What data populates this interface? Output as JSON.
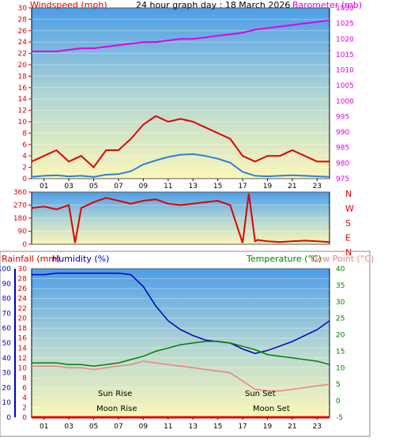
{
  "chart_data": [
    {
      "type": "line",
      "title": "24 hour graph day : 18 March 2026",
      "ylabel": "Windspeed (mph)",
      "ylabel_right": "Barometer (mb)",
      "xticks": [
        "01",
        "03",
        "05",
        "07",
        "09",
        "11",
        "13",
        "15",
        "17",
        "19",
        "21",
        "23"
      ],
      "yticks_left": [
        "0",
        "2",
        "4",
        "6",
        "8",
        "10",
        "12",
        "14",
        "16",
        "18",
        "20",
        "22",
        "24",
        "26",
        "28",
        "30"
      ],
      "yticks_right": [
        "975",
        "980",
        "985",
        "990",
        "995",
        "1000",
        "1005",
        "1010",
        "1015",
        "1020",
        "1025",
        "1030"
      ],
      "ylim": [
        0,
        30
      ],
      "ylim_right": [
        975,
        1030
      ],
      "xlim": [
        0,
        24
      ],
      "series": [
        {
          "id": "wind_avg",
          "color": "#2b7fe0",
          "x": [
            0,
            1,
            2,
            3,
            4,
            5,
            6,
            7,
            8,
            9,
            10,
            11,
            12,
            13,
            14,
            15,
            16,
            17,
            18,
            19,
            20,
            21,
            22,
            23,
            24
          ],
          "values": [
            0.3,
            0.5,
            0.6,
            0.4,
            0.5,
            0.3,
            0.7,
            0.8,
            1.3,
            2.5,
            3.2,
            3.8,
            4.2,
            4.3,
            4.0,
            3.5,
            2.8,
            1.2,
            0.5,
            0.4,
            0.5,
            0.6,
            0.5,
            0.4,
            0.3
          ]
        },
        {
          "id": "wind_gust",
          "color": "#e00000",
          "x": [
            0,
            1,
            2,
            3,
            4,
            5,
            6,
            7,
            8,
            9,
            10,
            11,
            12,
            13,
            14,
            15,
            16,
            17,
            18,
            19,
            20,
            21,
            22,
            23,
            24
          ],
          "values": [
            3,
            4,
            5,
            3,
            4,
            2,
            5,
            5,
            7,
            9.5,
            11,
            10,
            10.5,
            10,
            9,
            8,
            7,
            4,
            3,
            4,
            4,
            5,
            4,
            3,
            3
          ]
        },
        {
          "id": "barometer",
          "color": "#e000e0",
          "axis": "right",
          "x": [
            0,
            1,
            2,
            3,
            4,
            5,
            6,
            7,
            8,
            9,
            10,
            11,
            12,
            13,
            14,
            15,
            16,
            17,
            18,
            19,
            20,
            21,
            22,
            23,
            24
          ],
          "values": [
            1016,
            1016,
            1016,
            1016.5,
            1017,
            1017,
            1017.5,
            1018,
            1018.5,
            1019,
            1019,
            1019.5,
            1020,
            1020,
            1020.5,
            1021,
            1021.5,
            1022,
            1023,
            1023.5,
            1024,
            1024.5,
            1025,
            1025.5,
            1026
          ]
        }
      ]
    },
    {
      "type": "line",
      "ylabel": "",
      "yticks_left": [
        "0",
        "90",
        "180",
        "270",
        "360"
      ],
      "labels_right": [
        "N",
        "W",
        "S",
        "E",
        "N"
      ],
      "ylim": [
        0,
        360
      ],
      "xlim": [
        0,
        24
      ],
      "series": [
        {
          "id": "wind_dir",
          "color": "#e00000",
          "x": [
            0,
            1,
            2,
            3,
            3.5,
            4,
            5,
            6,
            7,
            8,
            9,
            10,
            11,
            12,
            13,
            14,
            15,
            16,
            17,
            17.5,
            18,
            18.2,
            19,
            20,
            21,
            22,
            23,
            24
          ],
          "values": [
            250,
            260,
            240,
            270,
            10,
            250,
            290,
            320,
            300,
            280,
            300,
            310,
            280,
            270,
            280,
            290,
            300,
            270,
            10,
            350,
            20,
            30,
            20,
            15,
            20,
            25,
            20,
            15
          ]
        }
      ]
    },
    {
      "type": "line",
      "ylabel": "Rainfall (mm)",
      "ylabel2": "Humidity (%)",
      "ylabel_right": "Temperature (°C)",
      "ylabel_right2": "Dew Point (°C)",
      "yticks_rain": [
        "0",
        "2",
        "4",
        "6",
        "8",
        "10",
        "12",
        "14",
        "16",
        "18",
        "20",
        "22",
        "24",
        "26",
        "28",
        "30"
      ],
      "yticks_hum": [
        "0",
        "10",
        "20",
        "30",
        "40",
        "50",
        "60",
        "70",
        "80",
        "90",
        "100"
      ],
      "yticks_temp": [
        "-5",
        "0",
        "5",
        "10",
        "15",
        "20",
        "25",
        "30",
        "35",
        "40"
      ],
      "ylim_temp": [
        -5,
        40
      ],
      "ylim_hum": [
        0,
        100
      ],
      "xlim": [
        0,
        24
      ],
      "annotations": {
        "sun_rise": "Sun Rise",
        "sun_set": "Sun Set",
        "moon_rise": "Moon Rise",
        "moon_set": "Moon Set"
      },
      "series": [
        {
          "id": "humidity",
          "color": "#0000c0",
          "axis": "hum",
          "x": [
            0,
            1,
            2,
            3,
            4,
            5,
            6,
            7,
            8,
            9,
            10,
            11,
            12,
            13,
            14,
            15,
            16,
            17,
            18,
            19,
            20,
            21,
            22,
            23,
            24
          ],
          "values": [
            96,
            96,
            97,
            97,
            97,
            97,
            97,
            97,
            96,
            88,
            75,
            65,
            59,
            55,
            52,
            51,
            50,
            46,
            43,
            45,
            48,
            51,
            55,
            59,
            65
          ]
        },
        {
          "id": "temperature",
          "color": "#008000",
          "axis": "temp",
          "x": [
            0,
            1,
            2,
            3,
            4,
            5,
            6,
            7,
            8,
            9,
            10,
            11,
            12,
            13,
            14,
            15,
            16,
            17,
            18,
            19,
            20,
            21,
            22,
            23,
            24
          ],
          "values": [
            11.5,
            11.5,
            11.5,
            11,
            11,
            10.5,
            11,
            11.5,
            12.5,
            13.5,
            15,
            16,
            17,
            17.5,
            18,
            18,
            17.5,
            16.5,
            15.5,
            14,
            13.5,
            13,
            12.5,
            12,
            11
          ]
        },
        {
          "id": "dewpoint",
          "color": "#f08080",
          "axis": "temp",
          "x": [
            0,
            1,
            2,
            3,
            4,
            5,
            6,
            7,
            8,
            9,
            10,
            11,
            12,
            13,
            14,
            15,
            16,
            17,
            18,
            19,
            20,
            21,
            22,
            23,
            24
          ],
          "values": [
            10.5,
            10.5,
            10.5,
            10,
            10,
            9.5,
            10,
            10.5,
            11,
            12,
            11.5,
            11,
            10.5,
            10,
            9.5,
            9,
            8.5,
            6,
            3.5,
            3,
            3,
            3.5,
            4,
            4.5,
            5
          ]
        },
        {
          "id": "rainfall",
          "color": "#e00000",
          "axis": "rain",
          "x": [
            0,
            24
          ],
          "values": [
            0,
            0
          ]
        }
      ]
    }
  ],
  "colors": {
    "wind_label": "#e00000",
    "baro_label": "#e000e0",
    "rain_label": "#e00000",
    "hum_label": "#0000c0",
    "temp_label": "#008000",
    "dew_label": "#f08080",
    "title": "#000000"
  }
}
